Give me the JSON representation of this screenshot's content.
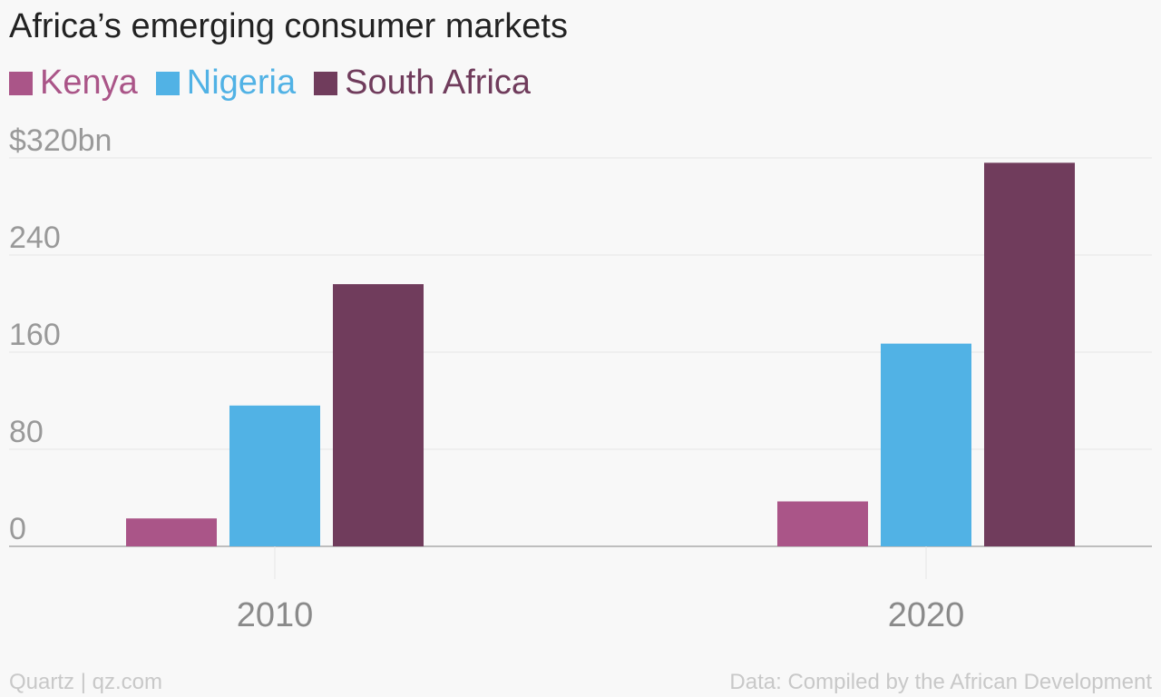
{
  "chart_data": {
    "type": "bar",
    "title": "Africa’s emerging consumer markets",
    "categories": [
      "2010",
      "2020"
    ],
    "series": [
      {
        "name": "Kenya",
        "color": "#aa5588",
        "values": [
          23,
          37
        ]
      },
      {
        "name": "Nigeria",
        "color": "#51b2e5",
        "values": [
          116,
          167
        ]
      },
      {
        "name": "South Africa",
        "color": "#703c5c",
        "values": [
          216,
          316
        ]
      }
    ],
    "yticks": [
      "$320bn",
      "240",
      "160",
      "80",
      "0"
    ],
    "ytick_values": [
      320,
      240,
      160,
      80,
      0
    ],
    "ylim": [
      0,
      320
    ],
    "grid": true,
    "legend_position": "top-left"
  },
  "footer": {
    "source_left": "Quartz | qz.com",
    "source_right": "Data: Compiled by the African Development"
  },
  "colors": {
    "background": "#f8f8f8",
    "grid": "#e6e6e6",
    "axis": "#aaaaaa"
  }
}
